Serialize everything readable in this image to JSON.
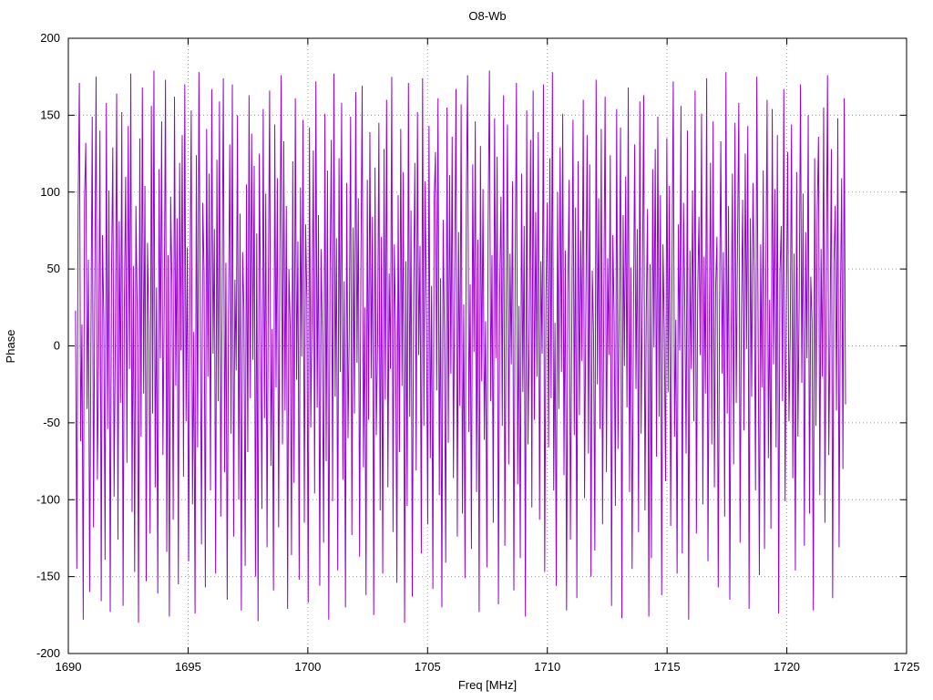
{
  "page": {
    "background": "#ffffff"
  },
  "chart_data": {
    "type": "line",
    "title": "O8-Wb",
    "xlabel": "Freq [MHz]",
    "ylabel": "Phase",
    "xlim": [
      1690,
      1725
    ],
    "ylim": [
      -200,
      200
    ],
    "xticks": [
      1690,
      1695,
      1700,
      1705,
      1710,
      1715,
      1720,
      1725
    ],
    "yticks": [
      -200,
      -150,
      -100,
      -50,
      0,
      50,
      100,
      150,
      200
    ],
    "grid": true,
    "legend_position": "none",
    "line_color": "#9400d3",
    "grid_color": "#9a9a9a",
    "border_color": "#000000",
    "x_start": 1690.3,
    "x_end": 1722.45,
    "values": [
      23,
      -145,
      88,
      171,
      -62,
      14,
      -178,
      95,
      132,
      -41,
      56,
      -160,
      7,
      149,
      -118,
      33,
      175,
      -87,
      -12,
      140,
      -166,
      72,
      18,
      -139,
      158,
      -54,
      101,
      -173,
      46,
      129,
      -98,
      5,
      164,
      -126,
      81,
      -37,
      152,
      -169,
      29,
      110,
      -76,
      143,
      -15,
      177,
      -108,
      52,
      -147,
      91,
      22,
      -180,
      135,
      -59,
      168,
      -31,
      104,
      -153,
      67,
      12,
      -122,
      156,
      -44,
      179,
      -92,
      38,
      -161,
      115,
      -8,
      146,
      -71,
      26,
      173,
      -134,
      59,
      -176,
      97,
      41,
      -113,
      162,
      -26,
      83,
      -155,
      119,
      -3,
      137,
      -85,
      170,
      -49,
      64,
      -140,
      31,
      153,
      -103,
      9,
      -174,
      124,
      -66,
      178,
      35,
      -129,
      93,
      48,
      -157,
      141,
      -20,
      112,
      -94,
      167,
      -5,
      76,
      -148,
      121,
      -36,
      159,
      -111,
      28,
      174,
      -82,
      54,
      -165,
      16,
      131,
      -57,
      170,
      -124,
      43,
      -16,
      150,
      -100,
      86,
      -172,
      61,
      24,
      -143,
      105,
      -69,
      163,
      -34,
      138,
      -9,
      117,
      -150,
      73,
      -179,
      125,
      21,
      -106,
      154,
      -47,
      99,
      -131,
      38,
      166,
      -78,
      11,
      -159,
      144,
      -27,
      109,
      -118,
      58,
      176,
      -64,
      133,
      -42,
      91,
      -171,
      50,
      14,
      -136,
      120,
      -89,
      161,
      -22,
      68,
      -152,
      103,
      -7,
      147,
      -115,
      79,
      30,
      -167,
      142,
      -53,
      19,
      127,
      -96,
      172,
      -40,
      85,
      -156,
      63,
      8,
      -128,
      151,
      -75,
      114,
      -178,
      45,
      134,
      -101,
      177,
      -33,
      70,
      -146,
      122,
      -17,
      158,
      -87,
      42,
      -170,
      106,
      -60,
      13,
      149,
      -123,
      77,
      -44,
      165,
      -11,
      96,
      -137,
      51,
      169,
      -79,
      25,
      -162,
      108,
      -48,
      139,
      -21,
      84,
      -175,
      116,
      -58,
      3,
      145,
      -107,
      71,
      -148,
      128,
      -35,
      160,
      -92,
      47,
      -15,
      175,
      -121,
      66,
      10,
      -154,
      98,
      -69,
      141,
      -26,
      113,
      -180,
      55,
      -104,
      171,
      -46,
      88,
      -163,
      34,
      119,
      -81,
      152,
      -6,
      65,
      -135,
      174,
      -52,
      107,
      18,
      -116,
      143,
      -73,
      39,
      -158,
      94,
      126,
      -29,
      161,
      -97,
      44,
      -170,
      82,
      7,
      -141,
      155,
      -63,
      111,
      -18,
      136,
      -86,
      49,
      167,
      -124,
      74,
      -39,
      157,
      -109,
      27,
      -151,
      92,
      176,
      -56,
      40,
      -132,
      118,
      -4,
      146,
      -95,
      69,
      -173,
      130,
      -23,
      102,
      -61,
      16,
      -144,
      80,
      179,
      -36,
      59,
      -115,
      148,
      -8,
      123,
      -168,
      37,
      97,
      -52,
      163,
      -130,
      21,
      144,
      -77,
      60,
      -12,
      107,
      -159,
      43,
      171,
      -90,
      26,
      -138,
      112,
      -30,
      78,
      -176,
      153,
      -64,
      9,
      134,
      -105,
      166,
      -48,
      87,
      -20,
      139,
      -113,
      55,
      -5,
      170,
      -147,
      32,
      93,
      -66,
      122,
      -34,
      178,
      -94,
      15,
      -156,
      100,
      -41,
      129,
      -17,
      151,
      -84,
      62,
      -172,
      35,
      108,
      -126,
      3,
      147,
      -58,
      90,
      -164,
      120,
      -45,
      75,
      -10,
      160,
      -99,
      23,
      137,
      -70,
      118,
      -150,
      49,
      8,
      -133,
      173,
      -25,
      96,
      -54,
      141,
      -116,
      31,
      162,
      -82,
      57,
      -6,
      124,
      -169,
      72,
      19,
      -104,
      154,
      -67,
      29,
      142,
      -177,
      85,
      -13,
      110,
      -40,
      168,
      -95,
      51,
      -145,
      14,
      131,
      -28,
      76,
      -121,
      159,
      -57,
      37,
      163,
      -107,
      22,
      89,
      -176,
      53,
      -138,
      115,
      -1,
      128,
      -72,
      149,
      -46,
      98,
      -162,
      66,
      11,
      -88,
      135,
      -30,
      104,
      -117,
      42,
      172,
      -59,
      17,
      -148,
      79,
      -3,
      156,
      -135,
      93,
      24,
      -70,
      140,
      -178,
      62,
      -15,
      101,
      -49,
      166,
      -122,
      34,
      84,
      -6,
      151,
      -103,
      58,
      -31,
      174,
      -140,
      12,
      119,
      -64,
      146,
      -92,
      39,
      71,
      -157,
      26,
      133,
      -18,
      61,
      -111,
      178,
      -44,
      91,
      -165,
      5,
      112,
      -77,
      145,
      -37,
      68,
      158,
      -128,
      20,
      95,
      -55,
      125,
      -2,
      143,
      -171,
      83,
      -33,
      106,
      48,
      -94,
      175,
      16,
      -149,
      66,
      -27,
      114,
      -132,
      41,
      160,
      -73,
      30,
      -119,
      154,
      -12,
      102,
      -66,
      137,
      -174,
      47,
      78,
      -36,
      167,
      -101,
      22,
      126,
      -49,
      6,
      144,
      -86,
      60,
      -146,
      113,
      -59,
      32,
      170,
      -24,
      99,
      -130,
      74,
      -8,
      150,
      -109,
      45,
      16,
      -172,
      122,
      -52,
      87,
      136,
      -97,
      63,
      -20,
      155,
      -115,
      39,
      176,
      -71,
      10,
      128,
      -164,
      54,
      91,
      -42,
      148,
      -131,
      25,
      109,
      -80,
      161,
      -38
    ]
  }
}
